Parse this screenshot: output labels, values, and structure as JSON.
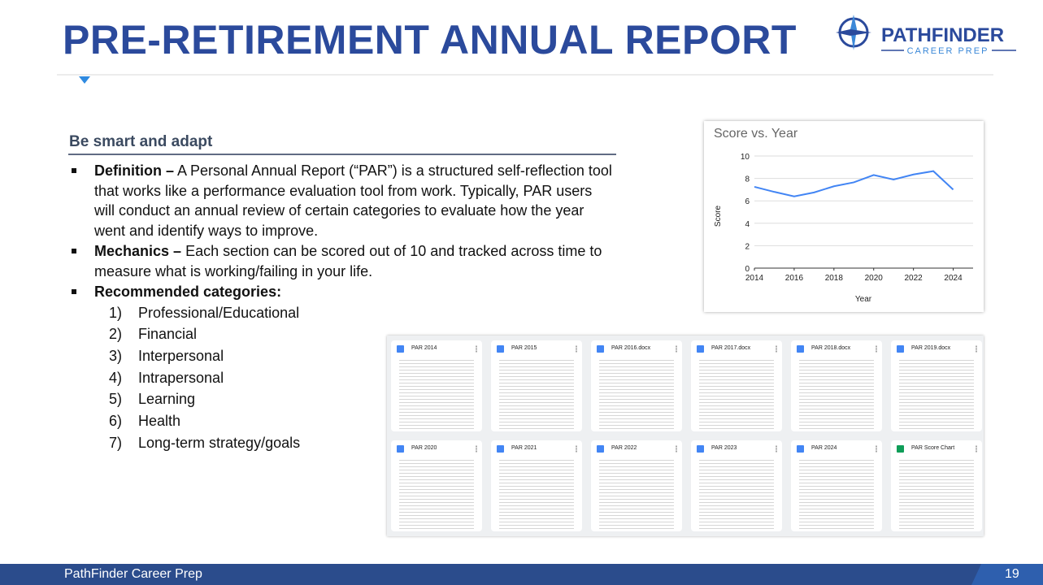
{
  "header": {
    "title": "PRE-RETIREMENT ANNUAL REPORT",
    "logo_name": "PATHFINDER",
    "logo_tagline": "CAREER PREP"
  },
  "section": {
    "heading": "Be smart and adapt",
    "bullets": [
      {
        "lead": "Definition –",
        "text": " A Personal Annual Report (“PAR”) is a structured self-reflection tool that works like a performance evaluation tool from work. Typically, PAR users will conduct an annual review of certain categories to evaluate how the year went and identify ways to improve."
      },
      {
        "lead": "Mechanics –",
        "text": " Each section can be scored out of 10 and tracked across time to measure what is working/failing in your life."
      },
      {
        "lead": "Recommended categories:",
        "text": ""
      }
    ],
    "categories": [
      {
        "number": "1)",
        "text": "Professional/Educational"
      },
      {
        "number": "2)",
        "text": "Financial"
      },
      {
        "number": "3)",
        "text": "Interpersonal"
      },
      {
        "number": "4)",
        "text": "Intrapersonal"
      },
      {
        "number": "5)",
        "text": "Learning"
      },
      {
        "number": "6)",
        "text": "Health"
      },
      {
        "number": "7)",
        "text": "Long-term strategy/goals"
      }
    ]
  },
  "chart_data": {
    "type": "line",
    "title": "Score vs. Year",
    "xlabel": "Year",
    "ylabel": "Score",
    "x": [
      2014,
      2015,
      2016,
      2017,
      2018,
      2019,
      2020,
      2021,
      2022,
      2023,
      2024
    ],
    "series": [
      {
        "name": "Score",
        "color": "#4285f4",
        "values": [
          7.25,
          6.8,
          6.4,
          6.75,
          7.3,
          7.65,
          8.3,
          7.9,
          8.35,
          8.65,
          7.0
        ]
      }
    ],
    "xlim": [
      2014,
      2025
    ],
    "ylim": [
      0,
      10
    ],
    "xticks": [
      2014,
      2016,
      2018,
      2020,
      2022,
      2024
    ],
    "yticks": [
      0,
      2,
      4,
      6,
      8,
      10
    ],
    "grid": true
  },
  "files": [
    "PAR 2014",
    "PAR 2015",
    "PAR 2016.docx",
    "PAR 2017.docx",
    "PAR 2018.docx",
    "PAR 2019.docx",
    "PAR 2020",
    "PAR 2021",
    "PAR 2022",
    "PAR 2023",
    "PAR 2024",
    "PAR Score Chart"
  ],
  "footer": {
    "text": "PathFinder Career Prep",
    "page": "19"
  }
}
